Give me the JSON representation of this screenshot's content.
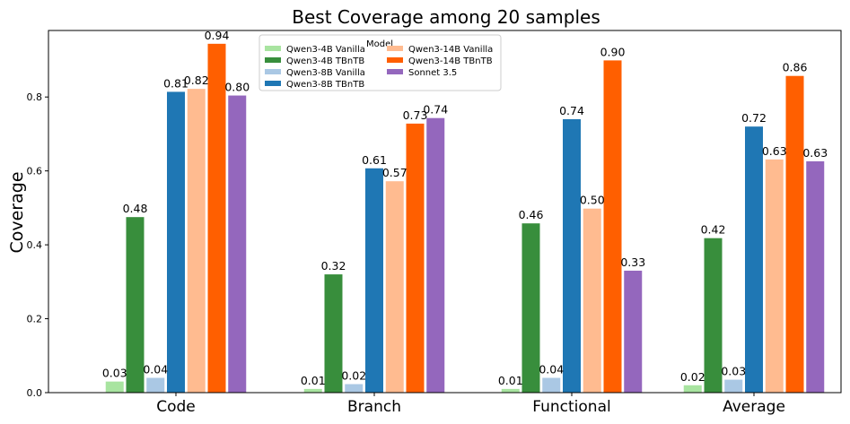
{
  "chart_data": {
    "type": "bar",
    "title": "Best Coverage among 20 samples",
    "xlabel": "",
    "ylabel": "Coverage",
    "ylim": [
      0,
      0.98
    ],
    "yticks": [
      "0.0",
      "0.2",
      "0.4",
      "0.6",
      "0.8"
    ],
    "categories": [
      "Code",
      "Branch",
      "Functional",
      "Average"
    ],
    "legend_title": "Model",
    "legend_position": "top-center",
    "series": [
      {
        "name": "Qwen3-4B Vanilla",
        "color": "#a8e4a0",
        "values": [
          0.03,
          0.01,
          0.01,
          0.02
        ],
        "labels": [
          "0.03",
          "0.01",
          "0.01",
          "0.02"
        ]
      },
      {
        "name": "Qwen3-4B TBnTB",
        "color": "#388e3c",
        "values": [
          0.475,
          0.32,
          0.458,
          0.418
        ],
        "labels": [
          "0.48",
          "0.32",
          "0.46",
          "0.42"
        ]
      },
      {
        "name": "Qwen3-8B Vanilla",
        "color": "#aac8e4",
        "values": [
          0.04,
          0.023,
          0.04,
          0.035
        ],
        "labels": [
          "0.04",
          "0.02",
          "0.04",
          "0.03"
        ]
      },
      {
        "name": "Qwen3-8B TBnTB",
        "color": "#1f77b4",
        "values": [
          0.814,
          0.607,
          0.74,
          0.72
        ],
        "labels": [
          "0.81",
          "0.61",
          "0.74",
          "0.72"
        ]
      },
      {
        "name": "Qwen3-14B Vanilla",
        "color": "#ffbb90",
        "values": [
          0.822,
          0.572,
          0.498,
          0.631
        ],
        "labels": [
          "0.82",
          "0.57",
          "0.50",
          "0.63"
        ]
      },
      {
        "name": "Qwen3-14B TBnTB",
        "color": "#ff5f00",
        "values": [
          0.944,
          0.728,
          0.899,
          0.857
        ],
        "labels": [
          "0.94",
          "0.73",
          "0.90",
          "0.86"
        ]
      },
      {
        "name": "Sonnet 3.5",
        "color": "#9467bd",
        "values": [
          0.804,
          0.743,
          0.33,
          0.626
        ],
        "labels": [
          "0.80",
          "0.74",
          "0.33",
          "0.63"
        ]
      }
    ]
  }
}
